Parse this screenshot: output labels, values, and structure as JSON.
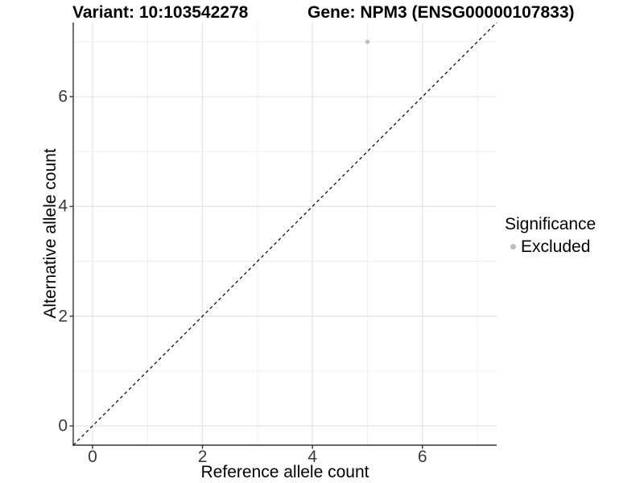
{
  "titles": {
    "variant": "Variant: 10:103542278",
    "gene": "Gene: NPM3 (ENSG00000107833)"
  },
  "chart_data": {
    "type": "scatter",
    "xlabel": "Reference allele count",
    "ylabel": "Alternative allele count",
    "xlim": [
      -0.35,
      7.35
    ],
    "ylim": [
      -0.35,
      7.35
    ],
    "x_ticks": [
      0,
      2,
      4,
      6
    ],
    "y_ticks": [
      0,
      2,
      4,
      6
    ],
    "x_minor_gridlines": [
      1,
      3,
      5,
      7
    ],
    "y_minor_gridlines": [
      1,
      3,
      5,
      7
    ],
    "grid": true,
    "points": [
      {
        "x": 5,
        "y": 7,
        "series": "Excluded"
      }
    ],
    "reference_line": {
      "equation": "y = x",
      "style": "dashed",
      "color": "#000000"
    },
    "series_colors": {
      "Excluded": "#bdbdbd"
    },
    "legend": {
      "title": "Significance",
      "position": "right",
      "items": [
        {
          "label": "Excluded",
          "color": "#bdbdbd",
          "marker": "circle"
        }
      ]
    },
    "style": {
      "background": "#ffffff",
      "major_grid_color": "#e3e3e3",
      "minor_grid_color": "#efefef",
      "axis_line_color": "#333333"
    }
  }
}
